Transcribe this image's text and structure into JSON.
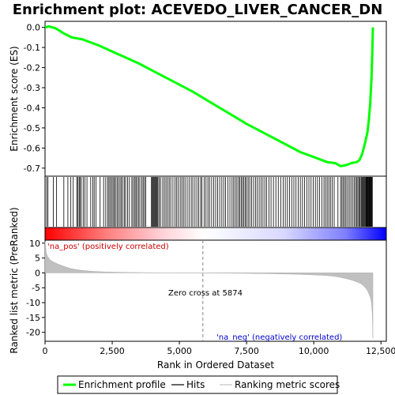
{
  "chart_data": {
    "type": "line",
    "title": "Enrichment plot: ACEVEDO_LIVER_CANCER_DN",
    "panels": {
      "enrichment": {
        "ylabel": "Enrichment score (ES)",
        "ylim": [
          -0.74,
          0.03
        ],
        "yticks": [
          0.0,
          -0.1,
          -0.2,
          -0.3,
          -0.4,
          -0.5,
          -0.6,
          -0.7
        ],
        "ytick_labels": [
          "0.0",
          "-0.1",
          "-0.2",
          "-0.3",
          "-0.4",
          "-0.5",
          "-0.6",
          "-0.7"
        ],
        "series": [
          {
            "name": "Enrichment profile",
            "color": "#00ff00",
            "x": [
              0,
              150,
              400,
              700,
              1000,
              1400,
              2000,
              2500,
              3000,
              3500,
              4000,
              4500,
              5000,
              5500,
              6000,
              6500,
              7000,
              7500,
              8000,
              8500,
              9000,
              9500,
              10000,
              10500,
              10800,
              11000,
              11200,
              11400,
              11600,
              11700,
              11800,
              11900,
              12000,
              12050,
              12100,
              12150,
              12180,
              12200
            ],
            "y": [
              0.0,
              0.005,
              -0.005,
              -0.03,
              -0.05,
              -0.06,
              -0.09,
              -0.12,
              -0.15,
              -0.18,
              -0.215,
              -0.25,
              -0.285,
              -0.32,
              -0.36,
              -0.4,
              -0.44,
              -0.48,
              -0.515,
              -0.55,
              -0.585,
              -0.62,
              -0.645,
              -0.67,
              -0.675,
              -0.69,
              -0.685,
              -0.675,
              -0.67,
              -0.66,
              -0.63,
              -0.58,
              -0.52,
              -0.46,
              -0.38,
              -0.25,
              -0.12,
              0.0
            ]
          }
        ]
      },
      "hits": {
        "hit_positions": [
          60,
          110,
          310,
          430,
          700,
          850,
          960,
          1050,
          1180,
          1220,
          1270,
          1300,
          1350,
          1420,
          1480,
          1560,
          1700,
          1780,
          1830,
          1900,
          2050,
          2180,
          2260,
          2330,
          2380,
          2430,
          2480,
          2530,
          2580,
          2620,
          2680,
          2730,
          2790,
          2840,
          2890,
          2950,
          3000,
          3070,
          3140,
          3230,
          3280,
          3340,
          3380,
          3420,
          3480,
          3530,
          3600,
          3650,
          3700,
          3750,
          3960,
          3990,
          4020,
          4050,
          4080,
          4110,
          4140,
          4170,
          4200,
          4250,
          4300,
          4380,
          4440,
          4500,
          4560,
          4620,
          4680,
          4760,
          4840,
          4900,
          4960,
          5030,
          5090,
          5150,
          5210,
          5290,
          5360,
          5440,
          5500,
          5580,
          5650,
          5720,
          5790,
          5840,
          5920,
          5990,
          6060,
          6120,
          6200,
          6280,
          6350,
          6420,
          6500,
          6580,
          6650,
          6720,
          6800,
          6880,
          6960,
          7020,
          7080,
          7140,
          7200,
          7250,
          7300,
          7350,
          7400,
          7450,
          7500,
          7560,
          7620,
          7690,
          7760,
          7830,
          7900,
          7970,
          8040,
          8110,
          8180,
          8250,
          8330,
          8410,
          8500,
          8590,
          8680,
          8770,
          8860,
          8940,
          9020,
          9100,
          9180,
          9260,
          9340,
          9420,
          9500,
          9580,
          9660,
          9740,
          9820,
          9900,
          9980,
          10060,
          10140,
          10220,
          10300,
          10380,
          10440,
          10500,
          10560,
          10620,
          10690,
          10760,
          10900,
          11000,
          11050,
          11100,
          11150,
          11200,
          11260,
          11320,
          11380,
          11440,
          11500,
          11550,
          11600,
          11640,
          11680,
          11720,
          11760,
          11790,
          11820,
          11850,
          11880,
          11910,
          11940,
          11960,
          11980,
          12000,
          12020,
          12040,
          12060,
          12080,
          12100,
          12120,
          12140,
          12160,
          12180
        ]
      },
      "ranked_metric": {
        "ylabel": "Ranked list metric (PreRanked)",
        "ylim": [
          -23,
          11
        ],
        "yticks": [
          10,
          5,
          0,
          -5,
          -10,
          -15,
          -20
        ],
        "ytick_labels": [
          "10",
          "5",
          "0",
          "-5",
          "-10",
          "-15",
          "-20"
        ],
        "series": [
          {
            "name": "Ranking metric scores",
            "color": "#c0c0c0",
            "x": [
              0,
              50,
              100,
              200,
              350,
              500,
              700,
              900,
              1100,
              1400,
              1800,
              2300,
              3000,
              4000,
              5000,
              5874,
              6500,
              7500,
              8500,
              9500,
              10000,
              10500,
              10800,
              11000,
              11200,
              11400,
              11600,
              11750,
              11850,
              11950,
              12000,
              12050,
              12100,
              12150,
              12180,
              12200
            ],
            "y": [
              10.5,
              6.5,
              5.5,
              4.3,
              3.5,
              2.9,
              2.2,
              1.6,
              1.2,
              0.8,
              0.5,
              0.3,
              0.15,
              0.06,
              0.02,
              0.0,
              -0.05,
              -0.15,
              -0.3,
              -0.5,
              -0.7,
              -0.9,
              -1.2,
              -1.5,
              -1.9,
              -2.4,
              -3.0,
              -3.6,
              -4.3,
              -5.3,
              -6.0,
              -7.0,
              -8.0,
              -10.0,
              -14.0,
              -22.0
            ]
          }
        ],
        "annotations": {
          "positive": "'na_pos' (positively correlated)",
          "negative": "'na_neg' (negatively correlated)",
          "zero_cross": "Zero cross at 5874",
          "zero_cross_x": 5874
        }
      }
    },
    "xlabel": "Rank in Ordered Dataset",
    "xlim": [
      0,
      12700
    ],
    "xticks": [
      0,
      2500,
      5000,
      7500,
      10000,
      12500
    ],
    "xtick_labels": [
      "0",
      "2,500",
      "5,000",
      "7,500",
      "10,000",
      "12,500"
    ],
    "legend": {
      "placement": "bottom",
      "items": [
        {
          "label": "Enrichment profile",
          "color": "#00ff00"
        },
        {
          "label": "Hits",
          "color": "#000000"
        },
        {
          "label": "Ranking metric scores",
          "color": "#c0c0c0"
        }
      ]
    },
    "colors": {
      "positive_band": "#ff0000",
      "negative_band": "#0000ff",
      "positive_text": "#cc0000",
      "negative_text": "#0000cc"
    }
  }
}
